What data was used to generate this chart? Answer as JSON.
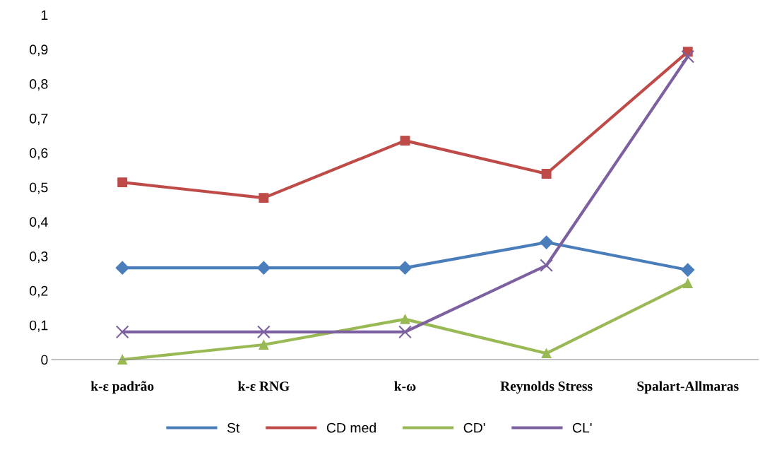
{
  "chart_data": {
    "type": "line",
    "categories": [
      "k-ε padrão",
      "k-ε RNG",
      "k-ω",
      "Reynolds Stress",
      "Spalart-Allmaras"
    ],
    "series": [
      {
        "name": "St",
        "color": "#4a7ebb",
        "marker": "diamond",
        "values": [
          0.266,
          0.266,
          0.266,
          0.34,
          0.26
        ]
      },
      {
        "name": "CD med",
        "color": "#be4b48",
        "marker": "square",
        "values": [
          0.514,
          0.469,
          0.635,
          0.539,
          0.893
        ]
      },
      {
        "name": "CD'",
        "color": "#98b954",
        "marker": "triangle",
        "values": [
          0,
          0.043,
          0.117,
          0.018,
          0.221
        ]
      },
      {
        "name": "CL'",
        "color": "#7d60a0",
        "marker": "cross",
        "values": [
          0.08,
          0.08,
          0.08,
          0.273,
          0.879
        ]
      }
    ],
    "ylim": [
      0,
      1
    ],
    "yticks": [
      0,
      {
        "value": 0.1,
        "label": "0,1"
      },
      {
        "value": 0.2,
        "label": "0,2"
      },
      {
        "value": 0.3,
        "label": "0,3"
      },
      {
        "value": 0.4,
        "label": "0,4"
      },
      {
        "value": 0.5,
        "label": "0,5"
      },
      {
        "value": 0.6,
        "label": "0,6"
      },
      {
        "value": 0.7,
        "label": "0,7"
      },
      {
        "value": 0.8,
        "label": "0,8"
      },
      {
        "value": 0.9,
        "label": "0,9"
      },
      1
    ],
    "grid": false,
    "legend": "bottom",
    "line_style": "solid"
  }
}
